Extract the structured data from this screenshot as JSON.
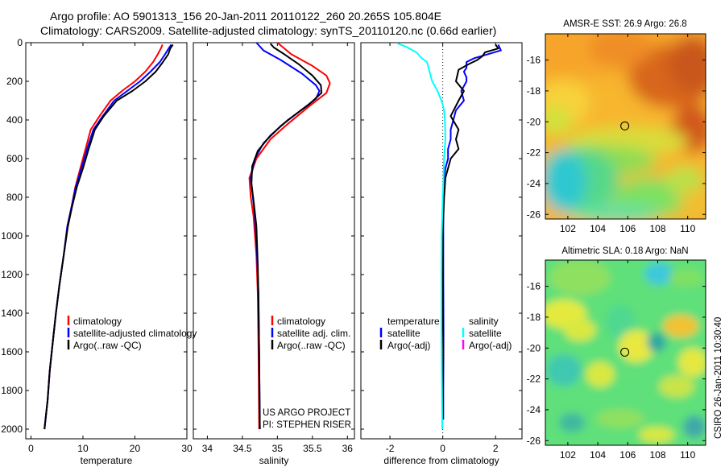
{
  "header": {
    "line1": "Argo profile: AO 5901313_156 20-Jan-2011 20110122_260 20.265S 105.804E",
    "line2": "Climatology: CARS2009. Satellite-adjusted climatology: synTS_20110120.nc (0.66d earlier)"
  },
  "colors": {
    "climatology": "#ff0000",
    "satellite": "#0000ff",
    "argo": "#000000",
    "salinity_satellite": "#00ffff",
    "salinity_argo": "#ff00ff"
  },
  "chart_data": [
    {
      "id": "temperature",
      "type": "line",
      "xlabel": "temperature",
      "xlim": [
        -1,
        30
      ],
      "xticks": [
        0,
        10,
        20,
        30
      ],
      "ylim": [
        2050,
        0
      ],
      "yticks": [
        0,
        200,
        400,
        600,
        800,
        1000,
        1200,
        1400,
        1600,
        1800,
        2000
      ],
      "legend": [
        "climatology",
        "satellite-adjusted climatology",
        "Argo(..raw -QC)"
      ],
      "series": [
        {
          "name": "climatology",
          "color": "#ff0000",
          "points": [
            [
              25.3,
              10
            ],
            [
              25.0,
              30
            ],
            [
              24.4,
              60
            ],
            [
              23.5,
              100
            ],
            [
              22.0,
              150
            ],
            [
              20.0,
              200
            ],
            [
              17.5,
              250
            ],
            [
              15.3,
              300
            ],
            [
              13.2,
              380
            ],
            [
              11.5,
              450
            ],
            [
              10.5,
              550
            ],
            [
              9.5,
              650
            ],
            [
              8.5,
              750
            ],
            [
              7.8,
              850
            ],
            [
              7.0,
              950
            ],
            [
              6.3,
              1100
            ],
            [
              5.5,
              1250
            ],
            [
              4.8,
              1400
            ],
            [
              4.2,
              1550
            ],
            [
              3.6,
              1700
            ],
            [
              3.2,
              1850
            ],
            [
              2.8,
              1950
            ],
            [
              2.6,
              2000
            ]
          ]
        },
        {
          "name": "satellite-adjusted climatology",
          "color": "#0000ff",
          "points": [
            [
              27.0,
              10
            ],
            [
              26.5,
              30
            ],
            [
              25.8,
              60
            ],
            [
              24.8,
              100
            ],
            [
              23.0,
              150
            ],
            [
              21.0,
              200
            ],
            [
              18.5,
              250
            ],
            [
              16.0,
              300
            ],
            [
              13.8,
              380
            ],
            [
              12.0,
              450
            ],
            [
              10.8,
              550
            ],
            [
              9.7,
              650
            ],
            [
              8.6,
              750
            ],
            [
              7.8,
              850
            ],
            [
              7.0,
              950
            ],
            [
              6.3,
              1100
            ],
            [
              5.5,
              1250
            ],
            [
              4.8,
              1400
            ],
            [
              4.2,
              1550
            ],
            [
              3.6,
              1700
            ],
            [
              3.2,
              1850
            ],
            [
              2.8,
              1950
            ],
            [
              2.6,
              2000
            ]
          ]
        },
        {
          "name": "Argo(..raw -QC)",
          "color": "#000000",
          "points": [
            [
              27.3,
              10
            ],
            [
              26.8,
              30
            ],
            [
              26.4,
              60
            ],
            [
              25.4,
              100
            ],
            [
              24.0,
              150
            ],
            [
              22.0,
              200
            ],
            [
              19.5,
              250
            ],
            [
              16.5,
              300
            ],
            [
              14.0,
              380
            ],
            [
              12.3,
              450
            ],
            [
              11.1,
              550
            ],
            [
              10.0,
              650
            ],
            [
              8.8,
              750
            ],
            [
              7.9,
              850
            ],
            [
              7.1,
              950
            ],
            [
              6.3,
              1100
            ],
            [
              5.5,
              1250
            ],
            [
              4.8,
              1400
            ],
            [
              4.2,
              1550
            ],
            [
              3.6,
              1700
            ],
            [
              3.2,
              1850
            ],
            [
              2.8,
              1950
            ],
            [
              2.6,
              2000
            ]
          ]
        }
      ]
    },
    {
      "id": "salinity",
      "type": "line",
      "xlabel": "salinity",
      "xlim": [
        33.8,
        36.1
      ],
      "xticks": [
        34,
        34.5,
        35,
        35.5,
        36
      ],
      "ylim": [
        2050,
        0
      ],
      "yticks": [
        0,
        200,
        400,
        600,
        800,
        1000,
        1200,
        1400,
        1600,
        1800,
        2000
      ],
      "legend": [
        "climatology",
        "satellite adj. clim.",
        "Argo(..raw -QC)"
      ],
      "annotations": [
        "US ARGO PROJECT",
        "PI: STEPHEN RISER"
      ],
      "series": [
        {
          "name": "climatology",
          "color": "#ff0000",
          "points": [
            [
              35.0,
              0
            ],
            [
              35.2,
              60
            ],
            [
              35.5,
              120
            ],
            [
              35.7,
              170
            ],
            [
              35.75,
              210
            ],
            [
              35.7,
              260
            ],
            [
              35.45,
              330
            ],
            [
              35.15,
              420
            ],
            [
              34.9,
              500
            ],
            [
              34.7,
              600
            ],
            [
              34.6,
              700
            ],
            [
              34.62,
              800
            ],
            [
              34.66,
              900
            ],
            [
              34.7,
              1100
            ],
            [
              34.72,
              1300
            ],
            [
              34.73,
              1600
            ],
            [
              34.74,
              2000
            ]
          ]
        },
        {
          "name": "satellite adj. clim.",
          "color": "#0000ff",
          "points": [
            [
              34.7,
              0
            ],
            [
              34.8,
              40
            ],
            [
              35.05,
              90
            ],
            [
              35.35,
              160
            ],
            [
              35.55,
              220
            ],
            [
              35.6,
              250
            ],
            [
              35.55,
              290
            ],
            [
              35.3,
              360
            ],
            [
              35.05,
              430
            ],
            [
              34.8,
              520
            ],
            [
              34.68,
              600
            ],
            [
              34.62,
              700
            ],
            [
              34.65,
              800
            ],
            [
              34.68,
              900
            ],
            [
              34.71,
              1100
            ],
            [
              34.73,
              1300
            ],
            [
              34.74,
              1600
            ],
            [
              34.75,
              2000
            ]
          ]
        },
        {
          "name": "Argo(..raw -QC)",
          "color": "#000000",
          "points": [
            [
              34.9,
              5
            ],
            [
              34.95,
              25
            ],
            [
              35.1,
              60
            ],
            [
              35.3,
              110
            ],
            [
              35.5,
              170
            ],
            [
              35.62,
              220
            ],
            [
              35.63,
              260
            ],
            [
              35.45,
              320
            ],
            [
              35.15,
              400
            ],
            [
              34.9,
              480
            ],
            [
              34.72,
              560
            ],
            [
              34.64,
              640
            ],
            [
              34.63,
              730
            ],
            [
              34.66,
              820
            ],
            [
              34.7,
              950
            ],
            [
              34.72,
              1150
            ],
            [
              34.73,
              1350
            ],
            [
              34.74,
              1600
            ],
            [
              34.75,
              2000
            ]
          ]
        }
      ]
    },
    {
      "id": "difference",
      "type": "line",
      "xlabel": "difference from climatology",
      "xlim": [
        -3.1,
        3.0
      ],
      "xticks": [
        -2,
        0,
        2
      ],
      "ylim": [
        2050,
        0
      ],
      "yticks": [
        0,
        200,
        400,
        600,
        800,
        1000,
        1200,
        1400,
        1600,
        1800,
        2000
      ],
      "legend_temperature_title": "temperature",
      "legend_temperature": [
        "satellite",
        "Argo(-adj)"
      ],
      "legend_salinity_title": "salinity",
      "legend_salinity": [
        "satellite",
        "Argo(-adj)"
      ],
      "series": [
        {
          "name": "temperature satellite",
          "color": "#0000ff",
          "points": [
            [
              2.1,
              10
            ],
            [
              2.2,
              40
            ],
            [
              1.7,
              60
            ],
            [
              1.2,
              80
            ],
            [
              0.9,
              100
            ],
            [
              0.9,
              130
            ],
            [
              0.8,
              150
            ],
            [
              0.9,
              180
            ],
            [
              0.9,
              200
            ],
            [
              0.7,
              250
            ],
            [
              0.8,
              300
            ],
            [
              0.5,
              350
            ],
            [
              0.4,
              400
            ],
            [
              0.3,
              450
            ],
            [
              0.3,
              500
            ],
            [
              0.2,
              550
            ],
            [
              0.2,
              600
            ],
            [
              0.1,
              650
            ],
            [
              0.05,
              700
            ],
            [
              0.02,
              800
            ],
            [
              0.02,
              1000
            ],
            [
              0.02,
              1200
            ],
            [
              0.03,
              1500
            ],
            [
              0.02,
              1800
            ],
            [
              0.02,
              1950
            ]
          ]
        },
        {
          "name": "temperature Argo(-adj)",
          "color": "#000000",
          "points": [
            [
              2.0,
              10
            ],
            [
              2.1,
              30
            ],
            [
              1.6,
              50
            ],
            [
              1.5,
              70
            ],
            [
              1.3,
              90
            ],
            [
              1.0,
              110
            ],
            [
              0.6,
              140
            ],
            [
              0.5,
              200
            ],
            [
              0.8,
              250
            ],
            [
              0.6,
              300
            ],
            [
              0.3,
              380
            ],
            [
              0.6,
              450
            ],
            [
              0.5,
              500
            ],
            [
              0.6,
              550
            ],
            [
              0.3,
              600
            ],
            [
              0.2,
              650
            ],
            [
              0.1,
              700
            ],
            [
              0.05,
              800
            ],
            [
              0.0,
              1000
            ],
            [
              0.0,
              1300
            ],
            [
              0.02,
              1600
            ],
            [
              0.0,
              1900
            ],
            [
              0.0,
              1950
            ]
          ]
        },
        {
          "name": "salinity satellite",
          "color": "#00ffff",
          "points": [
            [
              -1.7,
              5
            ],
            [
              -1.4,
              20
            ],
            [
              -1.0,
              50
            ],
            [
              -0.8,
              80
            ],
            [
              -0.6,
              100
            ],
            [
              -0.5,
              150
            ],
            [
              -0.4,
              200
            ],
            [
              -0.2,
              250
            ],
            [
              -0.05,
              300
            ],
            [
              0.05,
              350
            ],
            [
              0.08,
              400
            ],
            [
              0.1,
              500
            ],
            [
              0.05,
              600
            ],
            [
              0.03,
              700
            ],
            [
              0.0,
              800
            ],
            [
              -0.02,
              900
            ],
            [
              -0.04,
              1000
            ],
            [
              -0.05,
              1200
            ],
            [
              -0.05,
              1500
            ],
            [
              -0.03,
              1800
            ],
            [
              -0.02,
              2000
            ]
          ]
        }
      ]
    },
    {
      "id": "sst_map",
      "type": "heatmap",
      "title": "AMSR-E SST: 26.9 Argo: 26.8",
      "xticks": [
        102,
        104,
        106,
        108,
        110
      ],
      "yticks": [
        -16,
        -18,
        -20,
        -22,
        -24,
        -26
      ],
      "xlim": [
        100.5,
        111.2
      ],
      "ylim": [
        -26.3,
        -14.3
      ],
      "marker": [
        105.8,
        -20.27
      ]
    },
    {
      "id": "sla_map",
      "type": "heatmap",
      "title": "Altimetric SLA: 0.18 Argo: NaN",
      "xticks": [
        102,
        104,
        106,
        108,
        110
      ],
      "yticks": [
        -16,
        -18,
        -20,
        -22,
        -24,
        -26
      ],
      "xlim": [
        100.5,
        111.2
      ],
      "ylim": [
        -26.3,
        -14.3
      ],
      "marker": [
        105.8,
        -20.27
      ]
    }
  ],
  "side_label": "CSIRO 26-Jan-2011 10:30:40"
}
